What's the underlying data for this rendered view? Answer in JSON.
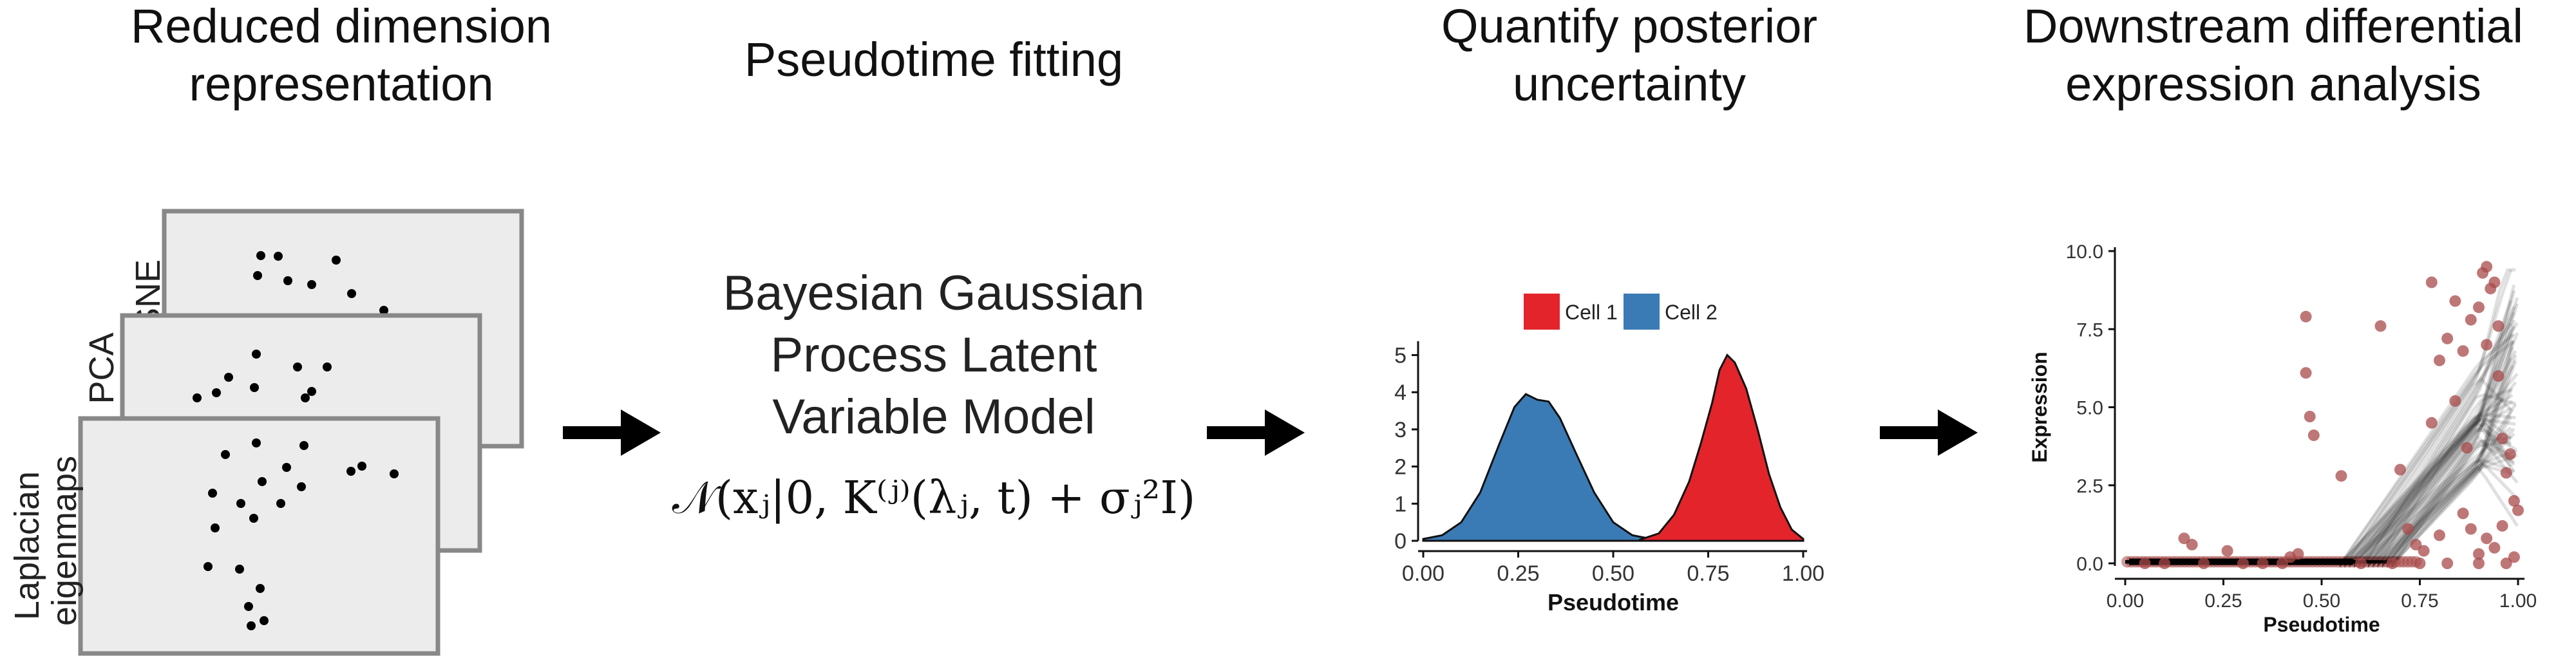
{
  "steps": [
    {
      "title_lines": [
        "Reduced dimension",
        "representation"
      ]
    },
    {
      "title_lines": [
        "Pseudotime fitting"
      ]
    },
    {
      "title_lines": [
        "Quantify posterior",
        "uncertainty"
      ]
    },
    {
      "title_lines": [
        "Downstream differential",
        "expression analysis"
      ]
    }
  ],
  "representation_panels": {
    "labels": [
      "t-SNE",
      "PCA",
      "Laplacian eigenmaps"
    ]
  },
  "model": {
    "name_lines": [
      "Bayesian Gaussian",
      "Process Latent",
      "Variable Model"
    ],
    "formula": "𝒩(xⱼ|0, K⁽ʲ⁾(λⱼ, t) + σⱼ²I)"
  },
  "chart_data": [
    {
      "type": "area",
      "legend": [
        {
          "name": "Cell 1",
          "color": "#e3242b"
        },
        {
          "name": "Cell 2",
          "color": "#3b7bb5"
        }
      ],
      "legend_position": "top-center",
      "xlabel": "Pseudotime",
      "ylabel": "",
      "xlim": [
        0,
        1
      ],
      "ylim": [
        0,
        5.2
      ],
      "x_ticks": [
        "0.00",
        "0.25",
        "0.50",
        "0.75",
        "1.00"
      ],
      "y_ticks": [
        "0",
        "1",
        "2",
        "3",
        "4",
        "5"
      ],
      "grid": false,
      "series": [
        {
          "name": "Cell 2",
          "color": "#3b7bb5",
          "x": [
            0.0,
            0.05,
            0.1,
            0.15,
            0.2,
            0.24,
            0.27,
            0.3,
            0.33,
            0.36,
            0.4,
            0.45,
            0.5,
            0.55,
            0.6
          ],
          "y": [
            0.05,
            0.15,
            0.5,
            1.3,
            2.6,
            3.6,
            3.95,
            3.8,
            3.75,
            3.3,
            2.4,
            1.3,
            0.5,
            0.15,
            0.05
          ]
        },
        {
          "name": "Cell 1",
          "color": "#e3242b",
          "x": [
            0.57,
            0.62,
            0.66,
            0.7,
            0.73,
            0.76,
            0.78,
            0.8,
            0.82,
            0.85,
            0.88,
            0.91,
            0.94,
            0.97,
            1.0
          ],
          "y": [
            0.03,
            0.2,
            0.7,
            1.6,
            2.6,
            3.7,
            4.6,
            5.0,
            4.8,
            4.1,
            3.0,
            1.8,
            0.9,
            0.3,
            0.05
          ]
        }
      ]
    },
    {
      "type": "scatter",
      "xlabel": "Pseudotime",
      "ylabel": "Expression",
      "xlim": [
        0,
        1
      ],
      "ylim": [
        0,
        10
      ],
      "x_ticks": [
        "0.00",
        "0.25",
        "0.50",
        "0.75",
        "1.00"
      ],
      "y_ticks": [
        "0.0",
        "2.5",
        "5.0",
        "7.5",
        "10.0"
      ],
      "grid": false,
      "point_color": "#a84a4a",
      "line_color": "#000000",
      "points": [
        [
          0.46,
          7.9
        ],
        [
          0.46,
          6.1
        ],
        [
          0.47,
          4.7
        ],
        [
          0.48,
          4.1
        ],
        [
          0.55,
          2.8
        ],
        [
          0.65,
          7.6
        ],
        [
          0.15,
          0.8
        ],
        [
          0.17,
          0.6
        ],
        [
          0.26,
          0.4
        ],
        [
          0.42,
          0.2
        ],
        [
          0.44,
          0.3
        ],
        [
          0.78,
          9.0
        ],
        [
          0.8,
          6.5
        ],
        [
          0.82,
          7.2
        ],
        [
          0.84,
          8.4
        ],
        [
          0.86,
          6.8
        ],
        [
          0.88,
          7.8
        ],
        [
          0.9,
          8.2
        ],
        [
          0.91,
          9.3
        ],
        [
          0.92,
          9.5
        ],
        [
          0.93,
          8.8
        ],
        [
          0.94,
          9.0
        ],
        [
          0.95,
          6.0
        ],
        [
          0.96,
          4.0
        ],
        [
          0.97,
          2.9
        ],
        [
          0.98,
          3.5
        ],
        [
          0.99,
          2.0
        ],
        [
          1.0,
          1.7
        ],
        [
          0.72,
          1.1
        ],
        [
          0.74,
          0.6
        ],
        [
          0.76,
          0.4
        ],
        [
          0.8,
          0.9
        ],
        [
          0.86,
          1.6
        ],
        [
          0.88,
          1.1
        ],
        [
          0.9,
          0.3
        ],
        [
          0.92,
          0.8
        ],
        [
          0.94,
          0.5
        ],
        [
          0.96,
          1.2
        ],
        [
          0.99,
          0.2
        ],
        [
          0.7,
          3.0
        ],
        [
          0.78,
          4.5
        ],
        [
          0.84,
          5.2
        ],
        [
          0.87,
          3.7
        ],
        [
          0.92,
          7.0
        ],
        [
          0.95,
          7.6
        ],
        [
          0.05,
          0.0
        ],
        [
          0.1,
          0.0
        ],
        [
          0.2,
          0.0
        ],
        [
          0.3,
          0.0
        ],
        [
          0.35,
          0.0
        ],
        [
          0.4,
          0.0
        ],
        [
          0.6,
          0.0
        ],
        [
          0.68,
          0.0
        ],
        [
          0.75,
          0.0
        ],
        [
          0.82,
          0.0
        ],
        [
          0.9,
          0.0
        ],
        [
          0.97,
          0.0
        ]
      ]
    }
  ]
}
